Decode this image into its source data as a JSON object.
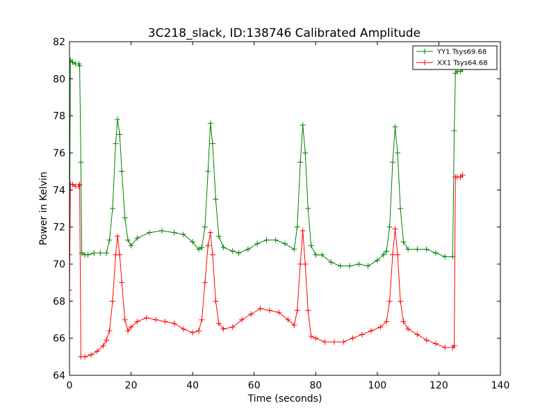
{
  "chart_data": {
    "type": "line",
    "title": "3C218_slack, ID:138746 Calibrated Amplitude",
    "xlabel": "Time (seconds)",
    "ylabel": "Power in Kelvin",
    "xlim": [
      0,
      140
    ],
    "ylim": [
      64,
      82
    ],
    "xticks": [
      "0",
      "20",
      "40",
      "60",
      "80",
      "100",
      "120",
      "140"
    ],
    "yticks": [
      "64",
      "66",
      "68",
      "70",
      "72",
      "74",
      "76",
      "78",
      "80",
      "82"
    ],
    "legend_position": "top-right",
    "grid": false,
    "marker": "+",
    "series": [
      {
        "name": "YY1 Tsys69.68",
        "color": "#008000",
        "points": [
          [
            0.0,
            70.5
          ],
          [
            0.3,
            81.0
          ],
          [
            1.0,
            80.9
          ],
          [
            2.0,
            80.8
          ],
          [
            3.0,
            80.8
          ],
          [
            3.3,
            80.7
          ],
          [
            3.7,
            75.5
          ],
          [
            4.0,
            70.6
          ],
          [
            5.0,
            70.5
          ],
          [
            6.0,
            70.5
          ],
          [
            8.0,
            70.6
          ],
          [
            10.0,
            70.6
          ],
          [
            12.0,
            70.6
          ],
          [
            13.0,
            71.3
          ],
          [
            14.0,
            73.0
          ],
          [
            15.0,
            76.5
          ],
          [
            15.6,
            77.8
          ],
          [
            16.3,
            77.0
          ],
          [
            17.0,
            75.0
          ],
          [
            18.0,
            72.5
          ],
          [
            19.0,
            71.3
          ],
          [
            20.0,
            71.0
          ],
          [
            22.0,
            71.4
          ],
          [
            26.0,
            71.7
          ],
          [
            30.0,
            71.8
          ],
          [
            34.0,
            71.7
          ],
          [
            37.0,
            71.6
          ],
          [
            40.0,
            71.2
          ],
          [
            42.0,
            70.8
          ],
          [
            43.0,
            70.9
          ],
          [
            44.0,
            72.0
          ],
          [
            45.0,
            75.0
          ],
          [
            45.8,
            77.6
          ],
          [
            46.5,
            76.5
          ],
          [
            47.5,
            73.5
          ],
          [
            48.5,
            71.5
          ],
          [
            50.0,
            70.9
          ],
          [
            53.0,
            70.7
          ],
          [
            55.0,
            70.6
          ],
          [
            58.0,
            70.8
          ],
          [
            61.0,
            71.1
          ],
          [
            64.0,
            71.3
          ],
          [
            67.0,
            71.3
          ],
          [
            70.0,
            71.1
          ],
          [
            73.0,
            70.8
          ],
          [
            74.0,
            72.0
          ],
          [
            75.0,
            75.5
          ],
          [
            75.8,
            77.5
          ],
          [
            76.6,
            76.0
          ],
          [
            77.5,
            73.0
          ],
          [
            78.5,
            71.0
          ],
          [
            80.0,
            70.5
          ],
          [
            82.0,
            70.5
          ],
          [
            85.0,
            70.1
          ],
          [
            88.0,
            69.9
          ],
          [
            91.0,
            69.9
          ],
          [
            94.0,
            70.0
          ],
          [
            97.0,
            69.9
          ],
          [
            100.0,
            70.2
          ],
          [
            102.0,
            70.5
          ],
          [
            103.0,
            70.7
          ],
          [
            104.0,
            72.0
          ],
          [
            105.0,
            75.5
          ],
          [
            105.8,
            77.4
          ],
          [
            106.6,
            76.0
          ],
          [
            107.5,
            73.0
          ],
          [
            108.5,
            71.2
          ],
          [
            110.0,
            70.8
          ],
          [
            113.0,
            70.8
          ],
          [
            116.0,
            70.8
          ],
          [
            119.0,
            70.6
          ],
          [
            122.0,
            70.4
          ],
          [
            124.5,
            70.4
          ],
          [
            125.0,
            77.2
          ],
          [
            125.4,
            80.3
          ],
          [
            126.0,
            80.4
          ],
          [
            127.0,
            80.4
          ],
          [
            127.7,
            80.5
          ]
        ]
      },
      {
        "name": "XX1 Tsys64.68",
        "color": "#ff0000",
        "points": [
          [
            0.0,
            68.6
          ],
          [
            0.3,
            74.3
          ],
          [
            1.0,
            74.3
          ],
          [
            2.0,
            74.2
          ],
          [
            3.0,
            74.2
          ],
          [
            3.3,
            74.3
          ],
          [
            3.7,
            65.0
          ],
          [
            5.0,
            65.0
          ],
          [
            7.0,
            65.1
          ],
          [
            9.0,
            65.3
          ],
          [
            11.0,
            65.6
          ],
          [
            12.0,
            65.9
          ],
          [
            13.0,
            66.4
          ],
          [
            14.0,
            68.0
          ],
          [
            15.0,
            70.5
          ],
          [
            15.6,
            71.5
          ],
          [
            16.3,
            70.5
          ],
          [
            17.0,
            69.0
          ],
          [
            18.0,
            67.0
          ],
          [
            19.0,
            66.4
          ],
          [
            20.0,
            66.6
          ],
          [
            22.0,
            66.9
          ],
          [
            25.0,
            67.1
          ],
          [
            28.0,
            67.0
          ],
          [
            31.0,
            66.9
          ],
          [
            34.0,
            66.8
          ],
          [
            37.0,
            66.5
          ],
          [
            40.0,
            66.3
          ],
          [
            42.0,
            66.4
          ],
          [
            43.0,
            67.0
          ],
          [
            44.0,
            69.0
          ],
          [
            45.0,
            71.0
          ],
          [
            45.8,
            71.7
          ],
          [
            46.5,
            70.5
          ],
          [
            47.5,
            68.0
          ],
          [
            48.5,
            66.8
          ],
          [
            50.0,
            66.5
          ],
          [
            53.0,
            66.6
          ],
          [
            56.0,
            67.0
          ],
          [
            59.0,
            67.3
          ],
          [
            62.0,
            67.6
          ],
          [
            65.0,
            67.5
          ],
          [
            68.0,
            67.4
          ],
          [
            71.0,
            67.0
          ],
          [
            73.0,
            66.7
          ],
          [
            74.0,
            67.5
          ],
          [
            75.0,
            70.0
          ],
          [
            75.8,
            71.8
          ],
          [
            76.6,
            70.0
          ],
          [
            77.5,
            67.5
          ],
          [
            78.5,
            66.1
          ],
          [
            80.0,
            66.0
          ],
          [
            83.0,
            65.8
          ],
          [
            86.0,
            65.8
          ],
          [
            89.0,
            65.8
          ],
          [
            92.0,
            66.0
          ],
          [
            95.0,
            66.2
          ],
          [
            98.0,
            66.4
          ],
          [
            101.0,
            66.6
          ],
          [
            103.0,
            66.9
          ],
          [
            104.0,
            68.0
          ],
          [
            105.0,
            70.5
          ],
          [
            105.8,
            71.9
          ],
          [
            106.6,
            70.5
          ],
          [
            107.5,
            68.0
          ],
          [
            108.5,
            66.9
          ],
          [
            110.0,
            66.5
          ],
          [
            113.0,
            66.2
          ],
          [
            116.0,
            65.9
          ],
          [
            119.0,
            65.7
          ],
          [
            122.0,
            65.5
          ],
          [
            124.5,
            65.5
          ],
          [
            125.0,
            65.6
          ],
          [
            125.4,
            74.7
          ],
          [
            126.0,
            74.7
          ],
          [
            127.0,
            74.7
          ],
          [
            127.7,
            74.8
          ]
        ]
      }
    ]
  }
}
